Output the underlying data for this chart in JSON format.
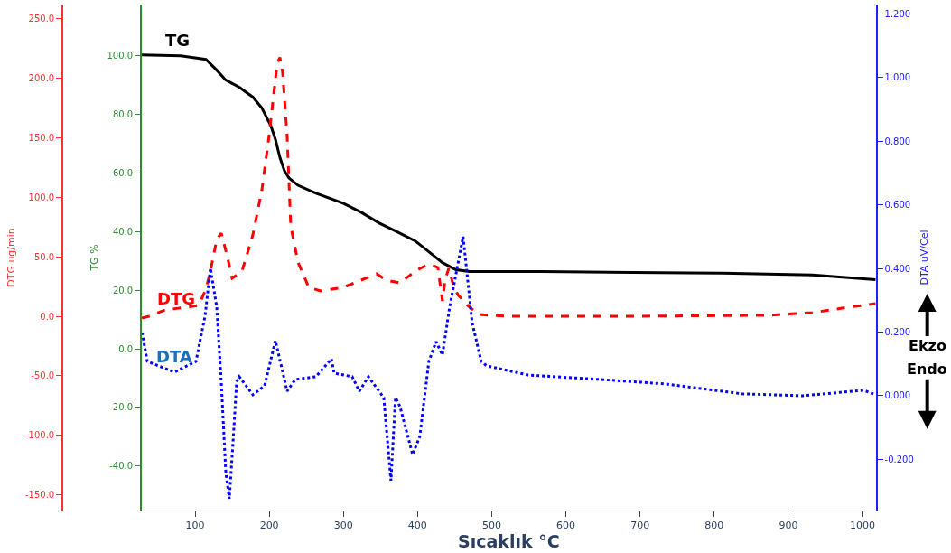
{
  "chart_data": {
    "type": "line",
    "xlabel": "Sıcaklık °C",
    "ylabel": "TG %",
    "y2label": "DTG ug/min",
    "y3label": "DTA uV/Cel",
    "xlim": [
      28,
      1018
    ],
    "xticks": [
      100,
      200,
      300,
      400,
      500,
      600,
      700,
      800,
      900,
      1000
    ],
    "ylim": [
      -55.2,
      117.5
    ],
    "yticks": [
      {
        "value": -40,
        "label": "-40.0"
      },
      {
        "value": -20,
        "label": "-20.0"
      },
      {
        "value": 0,
        "label": "0.0"
      },
      {
        "value": 20,
        "label": "20.0"
      },
      {
        "value": 40,
        "label": "40.0"
      },
      {
        "value": 60,
        "label": "60.0"
      },
      {
        "value": 80,
        "label": "80.0"
      },
      {
        "value": 100,
        "label": "100.0"
      }
    ],
    "y2lim": [
      -162.9,
      261.4
    ],
    "y2ticks": [
      {
        "value": -150,
        "label": "-150.0"
      },
      {
        "value": -100,
        "label": "-100.0"
      },
      {
        "value": -50,
        "label": "-50.0"
      },
      {
        "value": 0,
        "label": "0.0"
      },
      {
        "value": 50,
        "label": "50.0"
      },
      {
        "value": 100,
        "label": "100.0"
      },
      {
        "value": 150,
        "label": "150.0"
      },
      {
        "value": 200,
        "label": "200.0"
      },
      {
        "value": 250,
        "label": "250.0"
      }
    ],
    "y3lim": [
      -0.361,
      1.23
    ],
    "y3ticks": [
      {
        "value": -0.2,
        "label": "-0.200"
      },
      {
        "value": 0,
        "label": "0.000"
      },
      {
        "value": 0.2,
        "label": "0.200"
      },
      {
        "value": 0.4,
        "label": "0.400"
      },
      {
        "value": 0.6,
        "label": "0.600"
      },
      {
        "value": 0.8,
        "label": "0.800"
      },
      {
        "value": 1.0,
        "label": "1.000"
      },
      {
        "value": 1.2,
        "label": "1.200"
      }
    ],
    "series": [
      {
        "name": "TG",
        "color": "#000000",
        "line_style": "solid",
        "x": [
          28.2,
          80.5,
          114.6,
          129.2,
          141.4,
          159.6,
          177.9,
          190.1,
          202.2,
          208.3,
          214.4,
          220.5,
          226.6,
          238.7,
          263.1,
          299.6,
          323.9,
          348.3,
          372.6,
          396.9,
          415.2,
          433.5,
          451.7,
          470,
          567.3,
          689,
          810.7,
          932.4,
          1017.6
        ],
        "values": [
          100.3,
          100,
          98.8,
          95.1,
          91.7,
          89.3,
          85.9,
          82.2,
          76.1,
          71.5,
          65.3,
          60.7,
          58.3,
          55.8,
          53.1,
          49.7,
          46.6,
          42.9,
          39.9,
          36.8,
          33.1,
          29.4,
          27.0,
          26.4,
          26.4,
          26.1,
          25.8,
          25.2,
          23.6
        ]
      },
      {
        "name": "DTG",
        "color": "#ff0000",
        "line_style": "dashed",
        "axis": "y2",
        "x": [
          28.2,
          37.9,
          59.8,
          104.9,
          114.6,
          120.7,
          129.2,
          135.3,
          143.8,
          149.9,
          163.3,
          177.9,
          190.1,
          199.8,
          205.9,
          210.7,
          214.4,
          218,
          224.1,
          229,
          238.7,
          253.3,
          269.2,
          299.6,
          323.9,
          344.6,
          358,
          376.3,
          396.9,
          415.2,
          427.4,
          433.5,
          437.1,
          442,
          448.1,
          454.1,
          466.3,
          482.1,
          522.3,
          689,
          871.6,
          932.4,
          981.1,
          1017.6
        ],
        "values": [
          -1.5,
          0,
          5.3,
          9.1,
          22.7,
          37.9,
          64.4,
          69.7,
          49.2,
          31.8,
          37.9,
          68.2,
          106,
          151.5,
          185.6,
          212,
          217,
          204.5,
          151.5,
          75.8,
          45.5,
          24.2,
          21.2,
          24.2,
          30.3,
          35.6,
          30.3,
          28,
          37.9,
          43.9,
          40.9,
          12.9,
          30.3,
          40.2,
          26.5,
          18.2,
          9.8,
          1.5,
          0,
          0,
          0.8,
          3,
          7.6,
          10.6
        ]
      },
      {
        "name": "DTA",
        "color": "#0000ff",
        "line_style": "dotted",
        "axis": "y3",
        "x": [
          28.6,
          35.5,
          72,
          101.2,
          113.4,
          120.7,
          129.2,
          135.3,
          141.4,
          146.2,
          151.1,
          156,
          159.6,
          177.9,
          193.7,
          208.3,
          216.8,
          224.1,
          235.1,
          263.1,
          283.8,
          287.4,
          311.8,
          321.5,
          333.7,
          354.4,
          364.1,
          370.2,
          376.3,
          393.3,
          403,
          415.2,
          424.9,
          433.5,
          443.2,
          461.4,
          466.3,
          473.6,
          485.8,
          493.1,
          549.1,
          647.6,
          734,
          837.5,
          919,
          1001.8,
          1017.6
        ],
        "values": [
          0.199,
          0.108,
          0.074,
          0.108,
          0.25,
          0.401,
          0.278,
          0.043,
          -0.241,
          -0.324,
          -0.148,
          0.043,
          0.06,
          0.003,
          0.031,
          0.173,
          0.088,
          0.014,
          0.051,
          0.06,
          0.116,
          0.071,
          0.06,
          0.014,
          0.06,
          -0.006,
          -0.267,
          -0.006,
          -0.034,
          -0.185,
          -0.128,
          0.108,
          0.17,
          0.128,
          0.278,
          0.5,
          0.392,
          0.23,
          0.108,
          0.094,
          0.065,
          0.051,
          0.037,
          0.006,
          0,
          0.017,
          0.003
        ]
      }
    ],
    "annotations": [
      "Ekzo",
      "Endo"
    ]
  }
}
